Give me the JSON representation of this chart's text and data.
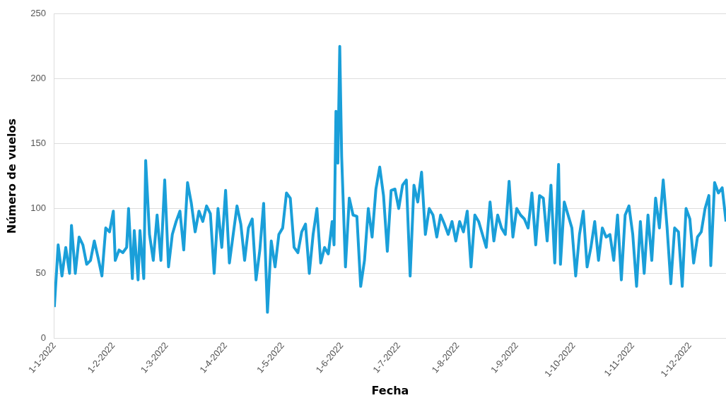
{
  "chart_data": {
    "type": "line",
    "xlabel": "Fecha",
    "ylabel": "Número de vuelos",
    "color": "#1a9fd9",
    "grid": "y",
    "legend": false,
    "marker": "none",
    "line_style": "solid",
    "xlim": [
      "2022-01-01",
      "2022-12-20"
    ],
    "xticks": [
      {
        "value": "2022-01-01",
        "label": "1-1-2022"
      },
      {
        "value": "2022-02-01",
        "label": "1-2-2022"
      },
      {
        "value": "2022-03-01",
        "label": "1-3-2022"
      },
      {
        "value": "2022-04-01",
        "label": "1-4-2022"
      },
      {
        "value": "2022-05-01",
        "label": "1-5-2022"
      },
      {
        "value": "2022-06-01",
        "label": "1-6-2022"
      },
      {
        "value": "2022-07-01",
        "label": "1-7-2022"
      },
      {
        "value": "2022-08-01",
        "label": "1-8-2022"
      },
      {
        "value": "2022-09-01",
        "label": "1-9-2022"
      },
      {
        "value": "2022-10-01",
        "label": "1-10-2022"
      },
      {
        "value": "2022-11-01",
        "label": "1-11-2022"
      },
      {
        "value": "2022-12-01",
        "label": "1-12-2022"
      }
    ],
    "ylim": [
      0,
      250
    ],
    "yticks": [
      0,
      50,
      100,
      150,
      200,
      250
    ],
    "x": [
      "2022-01-01",
      "2022-01-03",
      "2022-01-05",
      "2022-01-07",
      "2022-01-09",
      "2022-01-10",
      "2022-01-12",
      "2022-01-14",
      "2022-01-16",
      "2022-01-18",
      "2022-01-20",
      "2022-01-22",
      "2022-01-24",
      "2022-01-26",
      "2022-01-28",
      "2022-01-30",
      "2022-02-01",
      "2022-02-02",
      "2022-02-04",
      "2022-02-06",
      "2022-02-08",
      "2022-02-09",
      "2022-02-11",
      "2022-02-12",
      "2022-02-14",
      "2022-02-15",
      "2022-02-17",
      "2022-02-18",
      "2022-02-20",
      "2022-02-22",
      "2022-02-24",
      "2022-02-26",
      "2022-02-28",
      "2022-03-02",
      "2022-03-04",
      "2022-03-06",
      "2022-03-08",
      "2022-03-10",
      "2022-03-12",
      "2022-03-14",
      "2022-03-16",
      "2022-03-18",
      "2022-03-20",
      "2022-03-22",
      "2022-03-24",
      "2022-03-26",
      "2022-03-28",
      "2022-03-30",
      "2022-04-01",
      "2022-04-03",
      "2022-04-05",
      "2022-04-07",
      "2022-04-09",
      "2022-04-11",
      "2022-04-13",
      "2022-04-15",
      "2022-04-17",
      "2022-04-19",
      "2022-04-21",
      "2022-04-23",
      "2022-04-25",
      "2022-04-27",
      "2022-04-29",
      "2022-05-01",
      "2022-05-03",
      "2022-05-05",
      "2022-05-07",
      "2022-05-09",
      "2022-05-11",
      "2022-05-13",
      "2022-05-15",
      "2022-05-17",
      "2022-05-19",
      "2022-05-21",
      "2022-05-23",
      "2022-05-25",
      "2022-05-27",
      "2022-05-28",
      "2022-05-29",
      "2022-05-30",
      "2022-05-31",
      "2022-06-01",
      "2022-06-03",
      "2022-06-05",
      "2022-06-07",
      "2022-06-09",
      "2022-06-11",
      "2022-06-13",
      "2022-06-15",
      "2022-06-17",
      "2022-06-19",
      "2022-06-21",
      "2022-06-23",
      "2022-06-25",
      "2022-06-27",
      "2022-06-29",
      "2022-07-01",
      "2022-07-03",
      "2022-07-05",
      "2022-07-07",
      "2022-07-09",
      "2022-07-11",
      "2022-07-13",
      "2022-07-15",
      "2022-07-17",
      "2022-07-19",
      "2022-07-21",
      "2022-07-23",
      "2022-07-25",
      "2022-07-27",
      "2022-07-29",
      "2022-07-31",
      "2022-08-02",
      "2022-08-04",
      "2022-08-06",
      "2022-08-08",
      "2022-08-10",
      "2022-08-12",
      "2022-08-14",
      "2022-08-16",
      "2022-08-18",
      "2022-08-20",
      "2022-08-22",
      "2022-08-24",
      "2022-08-26",
      "2022-08-28",
      "2022-08-30",
      "2022-09-01",
      "2022-09-03",
      "2022-09-05",
      "2022-09-07",
      "2022-09-09",
      "2022-09-11",
      "2022-09-13",
      "2022-09-15",
      "2022-09-17",
      "2022-09-19",
      "2022-09-21",
      "2022-09-23",
      "2022-09-24",
      "2022-09-26",
      "2022-09-28",
      "2022-09-30",
      "2022-10-02",
      "2022-10-04",
      "2022-10-06",
      "2022-10-08",
      "2022-10-10",
      "2022-10-12",
      "2022-10-14",
      "2022-10-16",
      "2022-10-18",
      "2022-10-20",
      "2022-10-22",
      "2022-10-24",
      "2022-10-26",
      "2022-10-28",
      "2022-10-30",
      "2022-11-01",
      "2022-11-03",
      "2022-11-05",
      "2022-11-07",
      "2022-11-09",
      "2022-11-11",
      "2022-11-13",
      "2022-11-15",
      "2022-11-17",
      "2022-11-19",
      "2022-11-21",
      "2022-11-23",
      "2022-11-25",
      "2022-11-27",
      "2022-11-29",
      "2022-12-01",
      "2022-12-03",
      "2022-12-05",
      "2022-12-07",
      "2022-12-09",
      "2022-12-11",
      "2022-12-12",
      "2022-12-14",
      "2022-12-16",
      "2022-12-18",
      "2022-12-20"
    ],
    "values": [
      24,
      72,
      48,
      70,
      50,
      87,
      50,
      78,
      72,
      57,
      60,
      75,
      62,
      48,
      85,
      82,
      98,
      60,
      68,
      66,
      70,
      100,
      46,
      83,
      45,
      83,
      46,
      137,
      80,
      60,
      95,
      60,
      122,
      55,
      80,
      90,
      98,
      68,
      120,
      104,
      82,
      98,
      90,
      102,
      96,
      50,
      100,
      70,
      114,
      58,
      80,
      102,
      88,
      60,
      85,
      92,
      45,
      68,
      104,
      20,
      75,
      55,
      80,
      85,
      112,
      108,
      70,
      66,
      82,
      88,
      50,
      80,
      100,
      58,
      70,
      65,
      90,
      72,
      175,
      135,
      225,
      140,
      55,
      108,
      95,
      94,
      40,
      60,
      100,
      78,
      115,
      132,
      110,
      67,
      114,
      115,
      100,
      118,
      122,
      48,
      118,
      105,
      128,
      80,
      100,
      95,
      78,
      95,
      88,
      80,
      90,
      75,
      90,
      82,
      98,
      55,
      95,
      90,
      80,
      70,
      105,
      75,
      95,
      85,
      80,
      121,
      78,
      100,
      95,
      92,
      85,
      112,
      72,
      110,
      108,
      75,
      118,
      58,
      134,
      57,
      105,
      95,
      85,
      48,
      80,
      98,
      55,
      70,
      90,
      60,
      85,
      78,
      80,
      60,
      95,
      45,
      95,
      102,
      80,
      40,
      90,
      50,
      95,
      60,
      108,
      85,
      122,
      86,
      42,
      85,
      82,
      40,
      100,
      92,
      58,
      78,
      82,
      100,
      110,
      56,
      120,
      112,
      116,
      90
    ]
  }
}
